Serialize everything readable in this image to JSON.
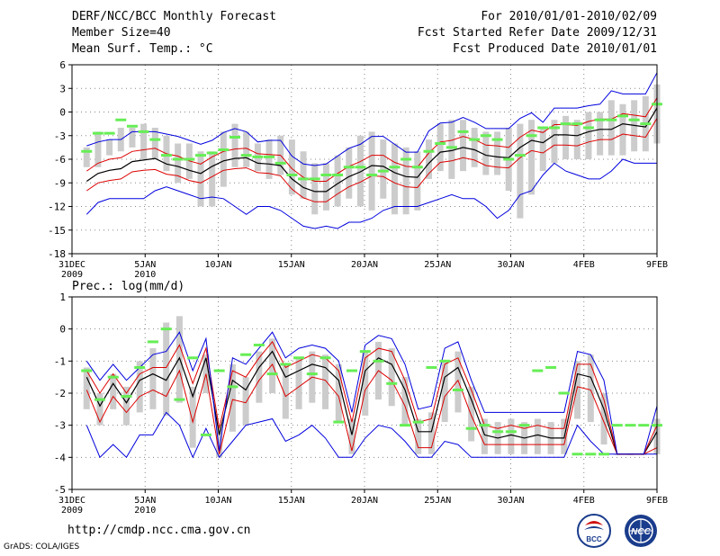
{
  "header": {
    "title": "DERF/NCC/BCC Monthly Forecast",
    "member_size": "Member Size=40",
    "variable": "Mean Surf. Temp.: °C",
    "period": "For 2010/01/01-2010/02/09",
    "fcst_started": "Fcst Started Refer Date 2009/12/31",
    "fcst_produced": "Fcst Produced Date 2010/01/01"
  },
  "footer": {
    "url": "http://cmdp.ncc.cma.gov.cn",
    "grads": "GrADS: COLA/IGES",
    "logo_left_text": "BCC",
    "logo_right_text": "NCC"
  },
  "colors": {
    "box": "#cccccc",
    "obs": "#66ee55",
    "mean": "#000000",
    "spread": "#dd0000",
    "envelope": "#0000dd",
    "grid": "#888888"
  },
  "chart_data": [
    {
      "type": "line",
      "title": "Mean Surf. Temp.: °C",
      "ylim": [
        -18,
        6
      ],
      "yticks": [
        6,
        3,
        0,
        -3,
        -6,
        -9,
        -12,
        -15,
        -18
      ],
      "ytick_labels": [
        "6",
        "3",
        "0",
        "-3",
        "-6",
        "-9",
        "-12",
        "-15",
        "-18"
      ],
      "xlim": [
        0,
        40
      ],
      "xticks": [
        0,
        5,
        10,
        15,
        20,
        25,
        30,
        35,
        40
      ],
      "xtick_labels": [
        "31DEC\n2009",
        "5JAN\n2010",
        "10JAN",
        "15JAN",
        "20JAN",
        "25JAN",
        "30JAN",
        "4FEB",
        "9FEB"
      ],
      "x_start": 1,
      "series": [
        {
          "name": "max",
          "values": [
            -4.3,
            -3.8,
            -3.5,
            -3.5,
            -2.5,
            -2.5,
            -2.5,
            -2.8,
            -3.1,
            -3.6,
            -4.1,
            -3.6,
            -2.6,
            -2.1,
            -2.5,
            -3.8,
            -3.6,
            -3.6,
            -5.6,
            -6.6,
            -6.8,
            -6.6,
            -5.6,
            -4.6,
            -4.1,
            -3.1,
            -3.1,
            -4.1,
            -5.1,
            -5.1,
            -2.4,
            -1.4,
            -1.3,
            -0.7,
            -1.3,
            -2.1,
            -2.1,
            -2.1,
            -0.8,
            -0.1,
            -1.3,
            0.5,
            0.5,
            0.5,
            0.8,
            1.0,
            2.7,
            2.3,
            2.3,
            2.3,
            5.0
          ]
        },
        {
          "name": "upper",
          "values": [
            -7.5,
            -6.5,
            -6.0,
            -5.8,
            -5.0,
            -4.8,
            -4.6,
            -5.3,
            -5.6,
            -6.2,
            -6.6,
            -5.7,
            -5.0,
            -4.7,
            -4.6,
            -5.3,
            -5.4,
            -5.5,
            -7.2,
            -8.3,
            -8.8,
            -8.8,
            -7.8,
            -6.9,
            -6.3,
            -5.5,
            -5.5,
            -6.4,
            -6.9,
            -7.0,
            -5.2,
            -3.8,
            -3.6,
            -3.1,
            -3.5,
            -4.2,
            -4.3,
            -4.5,
            -3.2,
            -2.3,
            -2.6,
            -1.6,
            -1.6,
            -1.7,
            -1.2,
            -0.9,
            -0.9,
            -0.2,
            -0.4,
            -0.6,
            1.8
          ]
        },
        {
          "name": "mean",
          "values": [
            -8.8,
            -7.8,
            -7.4,
            -7.2,
            -6.3,
            -6.1,
            -5.9,
            -6.6,
            -6.9,
            -7.4,
            -7.8,
            -6.9,
            -6.2,
            -5.9,
            -5.8,
            -6.5,
            -6.6,
            -6.8,
            -8.5,
            -9.6,
            -10.1,
            -10.1,
            -9.1,
            -8.2,
            -7.6,
            -6.8,
            -6.9,
            -7.7,
            -8.2,
            -8.3,
            -6.5,
            -5.1,
            -4.9,
            -4.5,
            -4.8,
            -5.5,
            -5.7,
            -5.8,
            -4.5,
            -3.6,
            -3.9,
            -2.9,
            -2.9,
            -3.0,
            -2.5,
            -2.2,
            -2.2,
            -1.5,
            -1.7,
            -1.9,
            0.5
          ]
        },
        {
          "name": "lower",
          "values": [
            -10.0,
            -9.0,
            -8.7,
            -8.5,
            -7.6,
            -7.4,
            -7.3,
            -7.9,
            -8.1,
            -8.7,
            -9.0,
            -8.2,
            -7.4,
            -7.2,
            -7.1,
            -7.7,
            -7.8,
            -8.1,
            -9.8,
            -10.9,
            -11.4,
            -11.4,
            -10.4,
            -9.5,
            -8.9,
            -8.1,
            -8.2,
            -9.0,
            -9.5,
            -9.6,
            -7.8,
            -6.4,
            -6.2,
            -5.8,
            -6.1,
            -6.8,
            -7.0,
            -7.1,
            -5.8,
            -4.9,
            -5.2,
            -4.2,
            -4.2,
            -4.3,
            -3.8,
            -3.5,
            -3.5,
            -2.8,
            -3.0,
            -3.2,
            -0.8
          ]
        },
        {
          "name": "min",
          "values": [
            -13.0,
            -11.5,
            -11.0,
            -11.0,
            -11.0,
            -11.0,
            -10.0,
            -9.5,
            -10.0,
            -10.5,
            -11.0,
            -10.8,
            -11.0,
            -12.0,
            -13.0,
            -12.0,
            -12.0,
            -12.5,
            -13.5,
            -14.5,
            -14.8,
            -14.5,
            -14.8,
            -14.0,
            -14.0,
            -13.5,
            -12.5,
            -12.0,
            -12.0,
            -12.0,
            -11.5,
            -11.0,
            -10.5,
            -11.0,
            -11.0,
            -12.0,
            -13.5,
            -12.5,
            -10.5,
            -10.0,
            -8.0,
            -6.5,
            -7.5,
            -8.0,
            -8.5,
            -8.5,
            -7.5,
            -6.0,
            -6.5,
            -6.5,
            -6.5
          ]
        },
        {
          "name": "box_top",
          "values": [
            -4.5,
            -2.5,
            -3.5,
            -2.0,
            -2.0,
            -1.5,
            -2.0,
            -3.0,
            -4.0,
            -4.0,
            -5.0,
            -5.0,
            -2.5,
            -1.5,
            -2.5,
            -4.0,
            -3.5,
            -3.0,
            -3.5,
            -5.0,
            -6.5,
            -6.5,
            -5.5,
            -4.5,
            -3.0,
            -2.5,
            -3.5,
            -4.0,
            -4.5,
            -5.0,
            -3.5,
            -1.5,
            -1.0,
            -1.0,
            -2.0,
            -2.5,
            -2.5,
            -2.0,
            -1.5,
            -1.0,
            -2.0,
            -1.0,
            -0.5,
            -1.0,
            0.0,
            0.0,
            1.5,
            1.0,
            1.5,
            2.0,
            3.5
          ]
        },
        {
          "name": "box_bottom",
          "values": [
            -7.0,
            -7.0,
            -5.5,
            -5.0,
            -4.5,
            -6.0,
            -6.0,
            -7.5,
            -9.0,
            -8.5,
            -12.0,
            -12.0,
            -9.5,
            -7.0,
            -7.0,
            -7.5,
            -8.5,
            -8.0,
            -10.5,
            -11.0,
            -13.0,
            -12.5,
            -12.0,
            -11.0,
            -12.0,
            -12.5,
            -11.0,
            -13.0,
            -13.0,
            -12.5,
            -8.5,
            -7.5,
            -8.5,
            -7.5,
            -7.0,
            -8.0,
            -8.0,
            -10.0,
            -13.5,
            -10.5,
            -7.5,
            -6.5,
            -6.0,
            -6.0,
            -6.0,
            -5.5,
            -5.5,
            -5.5,
            -5.0,
            -5.0,
            -4.0
          ]
        },
        {
          "name": "observed",
          "values": [
            -5.0,
            -2.7,
            -2.7,
            -1.0,
            -1.8,
            -2.5,
            -3.5,
            -5.5,
            -6.0,
            -6.0,
            -5.5,
            -5.2,
            -4.8,
            -3.2,
            -5.5,
            -5.7,
            -5.7,
            -6.5,
            -8.0,
            -8.5,
            -8.5,
            -8.0,
            -8.0,
            -7.0,
            -7.0,
            -8.0,
            -7.5,
            -7.0,
            -6.0,
            -7.0,
            -5.0,
            -4.0,
            -4.5,
            -2.5,
            -3.5,
            -3.0,
            -3.5,
            -6.0,
            -5.5,
            -3.0,
            -2.0,
            -2.0,
            -1.5,
            -1.5,
            -2.0,
            -1.0,
            -1.0,
            -0.5,
            -1.0,
            -1.5,
            1.0
          ]
        }
      ]
    },
    {
      "type": "line",
      "title": "Prec.: log(mm/d)",
      "ylim": [
        -5,
        1
      ],
      "yticks": [
        1,
        0,
        -1,
        -2,
        -3,
        -4,
        -5
      ],
      "ytick_labels": [
        "1",
        "0",
        "-1",
        "-2",
        "-3",
        "-4",
        "-5"
      ],
      "xlim": [
        0,
        40
      ],
      "xticks": [
        0,
        5,
        10,
        15,
        20,
        25,
        30,
        35,
        40
      ],
      "xtick_labels": [
        "31DEC\n2009",
        "5JAN\n2010",
        "10JAN",
        "15JAN",
        "20JAN",
        "25JAN",
        "30JAN",
        "4FEB",
        "9FEB"
      ],
      "x_start": 1,
      "series": [
        {
          "name": "max",
          "values": [
            -1.0,
            -1.6,
            -1.1,
            -1.6,
            -1.2,
            -0.8,
            -0.7,
            -0.1,
            -1.3,
            -0.3,
            -3.8,
            -0.9,
            -1.1,
            -0.6,
            -0.1,
            -0.9,
            -0.6,
            -0.5,
            -0.6,
            -1.0,
            -2.6,
            -0.5,
            -0.2,
            -0.3,
            -1.1,
            -2.5,
            -2.4,
            -0.6,
            -0.4,
            -1.6,
            -2.6,
            -2.6,
            -2.6,
            -2.6,
            -2.6,
            -2.6,
            -2.6,
            -0.7,
            -0.8,
            -1.6,
            -3.9,
            -3.9,
            -3.9,
            -2.4
          ]
        },
        {
          "name": "upper",
          "values": [
            -1.3,
            -2.0,
            -1.4,
            -2.0,
            -1.4,
            -1.2,
            -1.2,
            -0.5,
            -1.7,
            -0.6,
            -3.1,
            -1.3,
            -1.5,
            -0.9,
            -0.4,
            -1.2,
            -1.0,
            -0.8,
            -0.9,
            -1.3,
            -2.9,
            -0.9,
            -0.6,
            -0.7,
            -1.6,
            -2.9,
            -2.8,
            -1.1,
            -0.9,
            -1.9,
            -3.0,
            -3.1,
            -3.0,
            -3.1,
            -3.0,
            -3.1,
            -3.1,
            -1.1,
            -1.1,
            -2.2,
            -3.9,
            -3.9,
            -3.9,
            -3.0
          ]
        },
        {
          "name": "mean",
          "values": [
            -1.5,
            -2.4,
            -1.7,
            -2.3,
            -1.6,
            -1.4,
            -1.6,
            -0.9,
            -2.1,
            -0.9,
            -3.3,
            -1.6,
            -1.9,
            -1.2,
            -0.7,
            -1.5,
            -1.3,
            -1.1,
            -1.2,
            -1.6,
            -3.3,
            -1.3,
            -0.9,
            -1.1,
            -1.9,
            -3.2,
            -3.2,
            -1.5,
            -1.2,
            -2.2,
            -3.3,
            -3.4,
            -3.3,
            -3.4,
            -3.3,
            -3.4,
            -3.4,
            -1.4,
            -1.5,
            -2.5,
            -3.9,
            -3.9,
            -3.9,
            -3.2
          ]
        },
        {
          "name": "lower",
          "values": [
            -1.9,
            -2.9,
            -2.1,
            -2.6,
            -2.1,
            -1.9,
            -2.1,
            -1.3,
            -2.9,
            -1.4,
            -3.9,
            -2.2,
            -2.3,
            -1.6,
            -1.1,
            -2.1,
            -1.8,
            -1.5,
            -1.6,
            -2.1,
            -3.8,
            -1.9,
            -1.3,
            -1.6,
            -2.4,
            -3.7,
            -3.7,
            -2.1,
            -1.6,
            -2.7,
            -3.6,
            -3.6,
            -3.6,
            -3.6,
            -3.6,
            -3.6,
            -3.6,
            -1.8,
            -1.9,
            -2.9,
            -3.9,
            -3.9,
            -3.9,
            -3.7
          ]
        },
        {
          "name": "min",
          "values": [
            -3.0,
            -4.0,
            -3.6,
            -4.0,
            -3.3,
            -3.3,
            -2.6,
            -3.0,
            -4.0,
            -3.1,
            -4.0,
            -3.5,
            -3.0,
            -2.9,
            -2.8,
            -3.5,
            -3.3,
            -3.0,
            -3.4,
            -4.0,
            -4.0,
            -3.4,
            -3.0,
            -3.1,
            -3.5,
            -4.0,
            -4.0,
            -3.5,
            -3.6,
            -4.0,
            -4.0,
            -4.0,
            -4.0,
            -4.0,
            -4.0,
            -4.0,
            -4.0,
            -3.0,
            -3.5,
            -3.9,
            -3.9,
            -3.9,
            -3.9,
            -3.9
          ]
        },
        {
          "name": "box_top",
          "values": [
            -1.2,
            -2.0,
            -1.4,
            -1.8,
            -1.0,
            -0.6,
            0.2,
            0.4,
            -1.8,
            -0.8,
            -3.1,
            -1.1,
            -1.5,
            -0.7,
            -0.3,
            -1.1,
            -0.9,
            -0.7,
            -0.8,
            -1.1,
            -2.8,
            -0.7,
            -0.4,
            -0.6,
            -1.5,
            -2.8,
            -2.6,
            -1.0,
            -0.7,
            -1.8,
            -2.8,
            -2.9,
            -2.8,
            -2.9,
            -2.8,
            -2.9,
            -2.8,
            -1.0,
            -0.8,
            -2.0,
            -3.9,
            -3.9,
            -3.9,
            -2.8
          ]
        },
        {
          "name": "box_bottom",
          "values": [
            -2.5,
            -3.0,
            -2.5,
            -3.0,
            -2.6,
            -2.5,
            -2.7,
            -2.3,
            -3.7,
            -2.0,
            -4.0,
            -3.2,
            -3.0,
            -2.3,
            -2.0,
            -2.8,
            -2.5,
            -2.3,
            -2.5,
            -2.9,
            -3.9,
            -2.7,
            -2.2,
            -2.4,
            -3.0,
            -3.9,
            -3.9,
            -2.9,
            -2.6,
            -3.5,
            -3.9,
            -3.9,
            -3.9,
            -3.9,
            -3.9,
            -3.9,
            -3.9,
            -2.8,
            -2.9,
            -3.6,
            -3.9,
            -3.9,
            -3.9,
            -3.9
          ]
        },
        {
          "name": "observed",
          "values": [
            -1.3,
            -2.2,
            -1.5,
            -2.1,
            -1.2,
            -0.4,
            0.0,
            -2.2,
            -0.9,
            -3.3,
            -1.3,
            -1.8,
            -0.8,
            -0.5,
            -1.4,
            -1.1,
            -0.9,
            -1.4,
            -0.9,
            -2.9,
            -1.3,
            -0.7,
            -1.0,
            -1.7,
            -3.0,
            -2.9,
            -1.2,
            -1.0,
            -1.9,
            -3.1,
            -3.0,
            -3.2,
            -3.2,
            -3.0,
            -1.3,
            -1.2,
            -2.0,
            -3.9,
            -3.9,
            -3.9,
            -3.0,
            -3.0,
            -3.0,
            -3.0
          ]
        }
      ]
    }
  ]
}
